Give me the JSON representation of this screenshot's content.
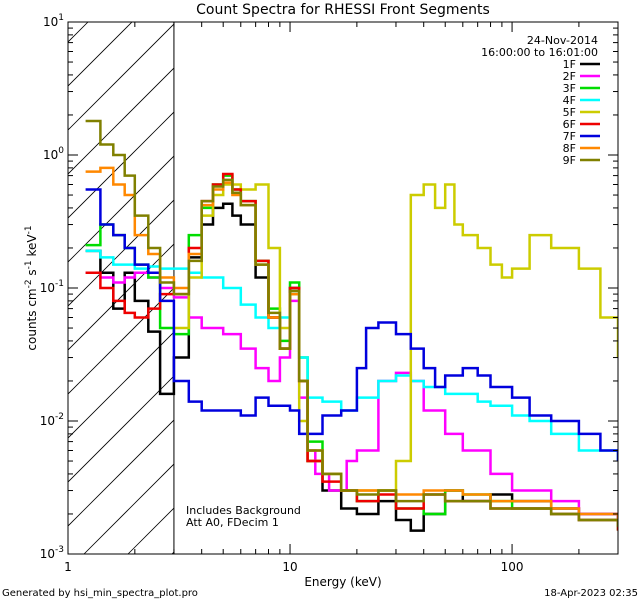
{
  "chart_data": {
    "type": "line",
    "title": "Count Spectra for RHESSI Front Segments",
    "xlabel": "Energy (keV)",
    "ylabel_main": "counts cm",
    "ylabel_sup1": "-2",
    "ylabel_mid": " s",
    "ylabel_sup2": "-1",
    "ylabel_tail": " keV",
    "ylabel_sup3": "-1",
    "x_scale": "log",
    "y_scale": "log",
    "xlim": [
      1,
      300
    ],
    "ylim": [
      0.001,
      10
    ],
    "x_ticks": [
      {
        "v": 1,
        "label": "1"
      },
      {
        "v": 10,
        "label": "10"
      },
      {
        "v": 100,
        "label": "100"
      }
    ],
    "y_ticks": [
      {
        "v": 0.001,
        "base": "10",
        "exp": "-3"
      },
      {
        "v": 0.01,
        "base": "10",
        "exp": "-2"
      },
      {
        "v": 0.1,
        "base": "10",
        "exp": "-1"
      },
      {
        "v": 1,
        "base": "10",
        "exp": "0"
      },
      {
        "v": 10,
        "base": "10",
        "exp": "1"
      }
    ],
    "attenuator_region_max_kev": 3,
    "date": "24-Nov-2014",
    "time_range": "16:00:00 to 16:01:00",
    "note_line1": "Includes Background",
    "note_line2": "Att A0, FDecim 1",
    "footer_left": "Generated by hsi_min_spectra_plot.pro",
    "footer_right": "18-Apr-2023 02:35",
    "series": [
      {
        "name": "1F",
        "color": "#000000",
        "x": [
          1.2,
          1.4,
          1.6,
          1.8,
          2.0,
          2.3,
          2.6,
          3.0,
          3.5,
          4.0,
          4.5,
          5.0,
          5.5,
          6.0,
          7.0,
          8.0,
          9.0,
          10.0,
          11.0,
          12.0,
          14.0,
          17.0,
          20.0,
          25.0,
          30.0,
          35.0,
          40.0,
          50.0,
          60.0,
          80.0,
          100.0,
          150.0,
          200.0,
          300.0
        ],
        "y": [
          0.19,
          0.13,
          0.07,
          0.13,
          0.08,
          0.047,
          0.016,
          0.03,
          0.17,
          0.3,
          0.4,
          0.43,
          0.35,
          0.3,
          0.12,
          0.06,
          0.035,
          0.1,
          0.02,
          0.005,
          0.003,
          0.0022,
          0.002,
          0.0025,
          0.0018,
          0.0015,
          0.002,
          0.003,
          0.0025,
          0.0028,
          0.0025,
          0.0022,
          0.002,
          0.0018
        ]
      },
      {
        "name": "2F",
        "color": "#ff00ff",
        "x": [
          1.2,
          1.4,
          1.6,
          1.8,
          2.0,
          2.3,
          2.6,
          3.0,
          3.5,
          4.0,
          5.0,
          6.0,
          7.0,
          8.0,
          9.0,
          10.0,
          11.0,
          12.0,
          13.0,
          15.0,
          18.0,
          20.0,
          25.0,
          30.0,
          35.0,
          40.0,
          50.0,
          60.0,
          80.0,
          100.0,
          150.0,
          200.0,
          300.0
        ],
        "y": [
          0.13,
          0.12,
          0.11,
          0.12,
          0.13,
          0.12,
          0.1,
          0.085,
          0.06,
          0.05,
          0.045,
          0.035,
          0.025,
          0.02,
          0.03,
          0.08,
          0.015,
          0.006,
          0.004,
          0.003,
          0.005,
          0.006,
          0.02,
          0.023,
          0.02,
          0.012,
          0.008,
          0.006,
          0.004,
          0.003,
          0.0025,
          0.002,
          0.0018
        ]
      },
      {
        "name": "3F",
        "color": "#00dd00",
        "x": [
          1.2,
          1.4,
          1.6,
          1.8,
          2.0,
          2.3,
          2.6,
          3.0,
          3.5,
          4.0,
          4.5,
          5.0,
          5.5,
          6.0,
          7.0,
          8.0,
          9.0,
          10.0,
          11.0,
          12.0,
          14.0,
          17.0,
          20.0,
          25.0,
          30.0,
          40.0,
          50.0,
          60.0,
          80.0,
          100.0,
          150.0,
          200.0,
          300.0
        ],
        "y": [
          0.21,
          0.3,
          0.25,
          0.2,
          0.15,
          0.12,
          0.05,
          0.045,
          0.25,
          0.4,
          0.6,
          0.7,
          0.55,
          0.45,
          0.16,
          0.07,
          0.04,
          0.11,
          0.03,
          0.007,
          0.004,
          0.003,
          0.0025,
          0.003,
          0.0022,
          0.002,
          0.003,
          0.0028,
          0.0025,
          0.0022,
          0.002,
          0.0018,
          0.0015
        ]
      },
      {
        "name": "4F",
        "color": "#00ffff",
        "x": [
          1.2,
          1.4,
          1.6,
          1.8,
          2.0,
          2.3,
          2.6,
          3.0,
          3.5,
          4.0,
          5.0,
          6.0,
          7.0,
          8.0,
          9.0,
          10.0,
          11.0,
          12.0,
          14.0,
          17.0,
          20.0,
          25.0,
          30.0,
          35.0,
          40.0,
          50.0,
          60.0,
          70.0,
          80.0,
          100.0,
          120.0,
          150.0,
          200.0,
          300.0
        ],
        "y": [
          0.19,
          0.17,
          0.15,
          0.15,
          0.14,
          0.145,
          0.14,
          0.14,
          0.13,
          0.12,
          0.1,
          0.075,
          0.06,
          0.05,
          0.06,
          0.09,
          0.03,
          0.015,
          0.014,
          0.012,
          0.015,
          0.02,
          0.022,
          0.02,
          0.018,
          0.016,
          0.016,
          0.014,
          0.013,
          0.011,
          0.01,
          0.008,
          0.006,
          0.005
        ]
      },
      {
        "name": "5F",
        "color": "#cccc00",
        "x": [
          3.0,
          3.5,
          4.0,
          4.5,
          5.0,
          6.0,
          7.0,
          8.0,
          9.0,
          10.0,
          11.0,
          12.0,
          14.0,
          17.0,
          20.0,
          25.0,
          30.0,
          35.0,
          40.0,
          45.0,
          50.0,
          55.0,
          60.0,
          70.0,
          80.0,
          90.0,
          100.0,
          120.0,
          150.0,
          200.0,
          250.0,
          300.0
        ],
        "y": [
          0.05,
          0.12,
          0.35,
          0.5,
          0.6,
          0.55,
          0.6,
          0.2,
          0.05,
          0.09,
          0.01,
          0.005,
          0.004,
          0.003,
          0.003,
          0.003,
          0.005,
          0.5,
          0.6,
          0.4,
          0.6,
          0.3,
          0.25,
          0.2,
          0.15,
          0.12,
          0.14,
          0.25,
          0.2,
          0.14,
          0.06,
          0.03
        ]
      },
      {
        "name": "6F",
        "color": "#ee0000",
        "x": [
          1.2,
          1.4,
          1.6,
          1.8,
          2.0,
          2.3,
          2.6,
          3.0,
          3.5,
          4.0,
          4.5,
          5.0,
          5.5,
          6.0,
          7.0,
          8.0,
          9.0,
          10.0,
          11.0,
          12.0,
          14.0,
          17.0,
          20.0,
          25.0,
          30.0,
          40.0,
          50.0,
          60.0,
          80.0,
          100.0,
          150.0,
          200.0,
          300.0
        ],
        "y": [
          0.13,
          0.1,
          0.08,
          0.065,
          0.06,
          0.07,
          0.09,
          0.09,
          0.2,
          0.45,
          0.6,
          0.72,
          0.55,
          0.45,
          0.16,
          0.06,
          0.035,
          0.1,
          0.02,
          0.005,
          0.0035,
          0.003,
          0.0025,
          0.0028,
          0.0022,
          0.0028,
          0.0025,
          0.0025,
          0.0022,
          0.0022,
          0.002,
          0.0018,
          0.0015
        ]
      },
      {
        "name": "7F",
        "color": "#0000dd",
        "x": [
          1.2,
          1.4,
          1.6,
          1.8,
          2.0,
          2.3,
          2.6,
          3.0,
          3.5,
          4.0,
          5.0,
          6.0,
          7.0,
          8.0,
          9.0,
          10.0,
          11.0,
          12.0,
          14.0,
          17.0,
          20.0,
          22.0,
          25.0,
          30.0,
          35.0,
          40.0,
          45.0,
          50.0,
          60.0,
          70.0,
          80.0,
          100.0,
          120.0,
          150.0,
          200.0,
          250.0,
          300.0
        ],
        "y": [
          0.55,
          0.3,
          0.25,
          0.2,
          0.15,
          0.13,
          0.08,
          0.02,
          0.014,
          0.012,
          0.012,
          0.011,
          0.015,
          0.013,
          0.013,
          0.012,
          0.008,
          0.008,
          0.011,
          0.012,
          0.025,
          0.05,
          0.055,
          0.045,
          0.035,
          0.025,
          0.018,
          0.022,
          0.025,
          0.022,
          0.018,
          0.015,
          0.011,
          0.01,
          0.008,
          0.006,
          0.005
        ]
      },
      {
        "name": "8F",
        "color": "#ff8800",
        "x": [
          1.2,
          1.4,
          1.6,
          1.8,
          2.0,
          2.3,
          2.6,
          3.0,
          3.5,
          4.0,
          4.5,
          5.0,
          5.5,
          6.0,
          7.0,
          8.0,
          9.0,
          10.0,
          11.0,
          12.0,
          14.0,
          17.0,
          20.0,
          25.0,
          30.0,
          40.0,
          50.0,
          60.0,
          80.0,
          100.0,
          150.0,
          200.0,
          300.0
        ],
        "y": [
          0.75,
          0.8,
          0.6,
          0.5,
          0.25,
          0.18,
          0.12,
          0.1,
          0.18,
          0.42,
          0.55,
          0.62,
          0.5,
          0.42,
          0.15,
          0.06,
          0.035,
          0.09,
          0.02,
          0.006,
          0.004,
          0.003,
          0.003,
          0.003,
          0.0028,
          0.003,
          0.003,
          0.0028,
          0.0025,
          0.0025,
          0.0022,
          0.002,
          0.0018
        ]
      },
      {
        "name": "9F",
        "color": "#808000",
        "x": [
          1.2,
          1.4,
          1.6,
          1.8,
          2.0,
          2.3,
          2.6,
          3.0,
          3.5,
          4.0,
          4.5,
          5.0,
          5.5,
          6.0,
          7.0,
          8.0,
          9.0,
          10.0,
          11.0,
          12.0,
          14.0,
          17.0,
          20.0,
          25.0,
          30.0,
          40.0,
          50.0,
          60.0,
          80.0,
          100.0,
          150.0,
          200.0,
          300.0
        ],
        "y": [
          1.8,
          1.2,
          1.0,
          0.7,
          0.35,
          0.2,
          0.11,
          0.09,
          0.16,
          0.45,
          0.58,
          0.65,
          0.52,
          0.42,
          0.15,
          0.065,
          0.035,
          0.095,
          0.02,
          0.006,
          0.004,
          0.003,
          0.0028,
          0.003,
          0.0025,
          0.0028,
          0.0025,
          0.0025,
          0.0022,
          0.0022,
          0.002,
          0.0018,
          0.0016
        ]
      }
    ]
  }
}
